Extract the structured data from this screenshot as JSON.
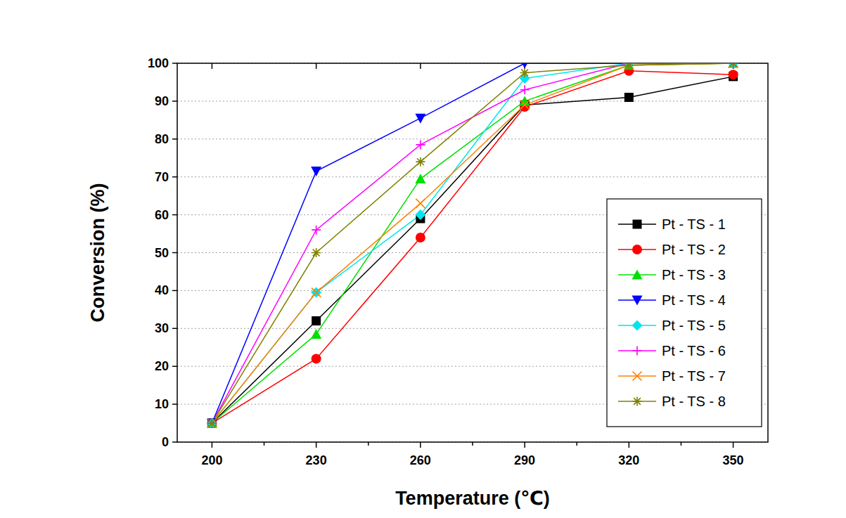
{
  "chart_data": {
    "type": "line",
    "x_label": "Temperature (℃)",
    "y_label": "Conversion (%)",
    "x": [
      200,
      230,
      260,
      290,
      320,
      350
    ],
    "xlim": [
      190,
      360
    ],
    "xticks": [
      200,
      230,
      260,
      290,
      320,
      350
    ],
    "ylim": [
      0,
      100
    ],
    "yticks": [
      0,
      10,
      20,
      30,
      40,
      50,
      60,
      70,
      80,
      90,
      100
    ],
    "grid": true,
    "legend": "bottom-right",
    "series": [
      {
        "name": "Pt - TS - 1",
        "color": "#000000",
        "marker": "square",
        "values": [
          5,
          32,
          59,
          89,
          91,
          96.5
        ]
      },
      {
        "name": "Pt - TS - 2",
        "color": "#ff0000",
        "marker": "circle",
        "values": [
          5,
          22,
          54,
          88.5,
          98,
          97
        ]
      },
      {
        "name": "Pt - TS - 3",
        "color": "#00e000",
        "marker": "triangle",
        "values": [
          5,
          28.5,
          69.5,
          90,
          99.5,
          100
        ]
      },
      {
        "name": "Pt - TS - 4",
        "color": "#0000ff",
        "marker": "triangle-down",
        "values": [
          5,
          71.5,
          85.5,
          100,
          100,
          100
        ]
      },
      {
        "name": "Pt - TS - 5",
        "color": "#00e5ee",
        "marker": "diamond",
        "values": [
          5,
          39.5,
          60,
          96,
          100,
          100
        ]
      },
      {
        "name": "Pt - TS - 6",
        "color": "#ff00ff",
        "marker": "plus",
        "values": [
          5,
          56,
          78.5,
          93,
          100,
          100
        ]
      },
      {
        "name": "Pt - TS - 7",
        "color": "#ff8000",
        "marker": "cross",
        "values": [
          5,
          39.5,
          63,
          89,
          99.5,
          100
        ]
      },
      {
        "name": "Pt - TS - 8",
        "color": "#808000",
        "marker": "star",
        "values": [
          5,
          50,
          74,
          97.5,
          99.5,
          100
        ]
      }
    ]
  }
}
